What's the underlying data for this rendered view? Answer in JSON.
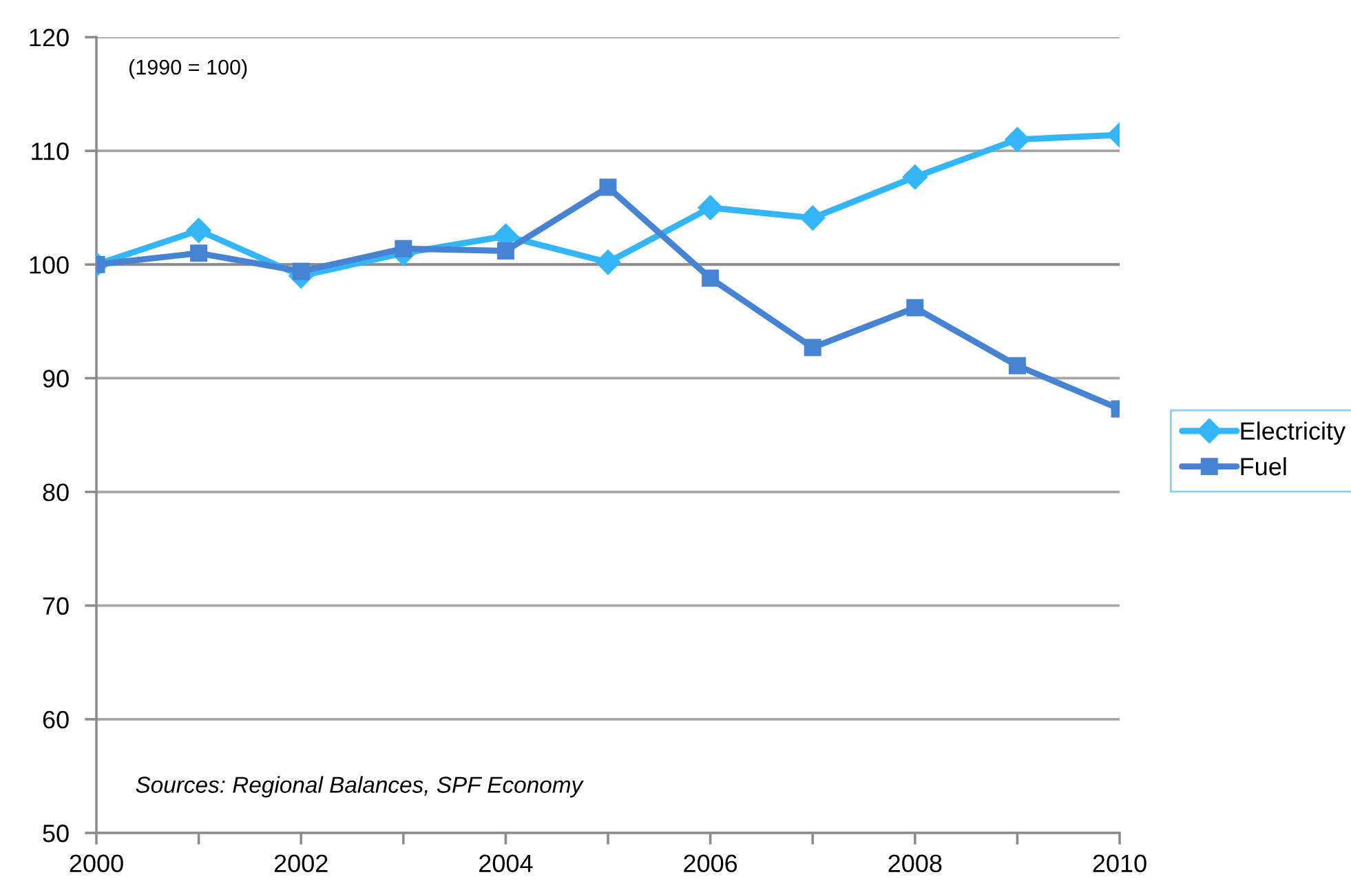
{
  "chart_data": {
    "type": "line",
    "annotations": [
      "(1990 = 100)",
      "Sources: Regional Balances, SPF Economy"
    ],
    "x": [
      2000,
      2001,
      2002,
      2003,
      2004,
      2005,
      2006,
      2007,
      2008,
      2009,
      2010
    ],
    "series": [
      {
        "name": "Electricity",
        "color": "#33b6f7",
        "marker": "diamond",
        "values": [
          100,
          103.0,
          99.0,
          101.0,
          102.5,
          100.2,
          105.0,
          104.1,
          107.7,
          111.0,
          111.4
        ]
      },
      {
        "name": "Fuel",
        "color": "#4783d3",
        "marker": "square",
        "values": [
          100,
          101.0,
          99.4,
          101.4,
          101.2,
          106.8,
          98.8,
          92.7,
          96.2,
          91.1,
          87.3
        ]
      }
    ],
    "xlim": [
      2000,
      2010
    ],
    "xticks": [
      2000,
      {
        "value": 2001,
        "label": null
      },
      2002,
      {
        "value": 2003,
        "label": null
      },
      2004,
      {
        "value": 2005,
        "label": null
      },
      2006,
      {
        "value": 2007,
        "label": null
      },
      2008,
      {
        "value": 2009,
        "label": null
      },
      2010
    ],
    "ylim": [
      50,
      120
    ],
    "yticks": [
      50,
      60,
      70,
      80,
      90,
      100,
      110,
      120
    ],
    "grid": "y",
    "legend": "right",
    "line_style": "solid",
    "ref_lines": [
      {
        "axis": "y",
        "value": 100,
        "color": "#8c8c8c"
      }
    ]
  }
}
